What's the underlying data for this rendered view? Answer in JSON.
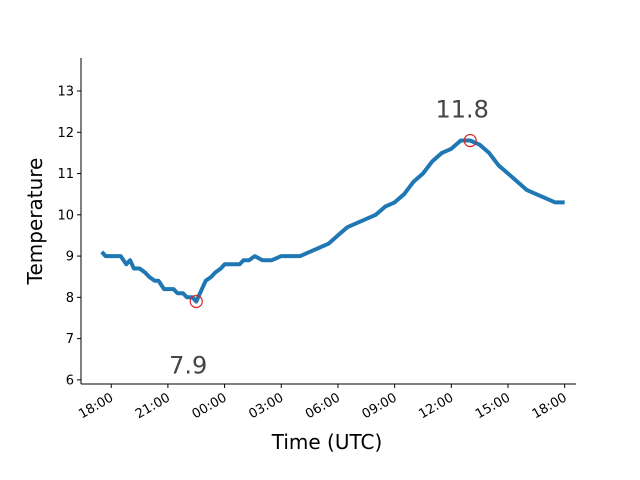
{
  "chart_data": {
    "type": "line",
    "title": "",
    "xlabel": "Time (UTC)",
    "ylabel": "Temperature",
    "x_tick_labels": [
      "18:00",
      "21:00",
      "00:00",
      "03:00",
      "06:00",
      "09:00",
      "12:00",
      "15:00",
      "18:00"
    ],
    "x_tick_hours": [
      0,
      3,
      6,
      9,
      12,
      15,
      18,
      21,
      24
    ],
    "y_ticks": [
      6,
      7,
      8,
      9,
      10,
      11,
      12,
      13
    ],
    "xlim_hours": [
      -1.6,
      24.6
    ],
    "ylim": [
      5.9,
      13.8
    ],
    "grid": false,
    "line_color": "#1f77b4",
    "marker_color": "#d62728",
    "series": [
      {
        "x_hours": [
          -0.5,
          -0.3,
          0,
          0.3,
          0.5,
          0.8,
          1.0,
          1.2,
          1.5,
          1.8,
          2.0,
          2.3,
          2.5,
          2.8,
          3.0,
          3.3,
          3.5,
          3.8,
          4.0,
          4.3,
          4.5,
          4.8,
          5.0,
          5.3,
          5.5,
          5.8,
          6.0,
          6.3,
          6.5,
          6.8,
          7.0,
          7.3,
          7.6,
          8.0,
          8.5,
          9.0,
          9.5,
          10.0,
          10.5,
          11.0,
          11.5,
          12.0,
          12.5,
          13.0,
          13.5,
          14.0,
          14.5,
          15.0,
          15.5,
          16.0,
          16.5,
          17.0,
          17.5,
          18.0,
          18.5,
          19.0,
          19.5,
          20.0,
          20.5,
          21.0,
          21.5,
          22.0,
          22.5,
          23.0,
          23.5,
          24.0
        ],
        "y_values": [
          9.1,
          9.0,
          9.0,
          9.0,
          9.0,
          8.8,
          8.9,
          8.7,
          8.7,
          8.6,
          8.5,
          8.4,
          8.4,
          8.2,
          8.2,
          8.2,
          8.1,
          8.1,
          8.0,
          8.0,
          7.9,
          8.2,
          8.4,
          8.5,
          8.6,
          8.7,
          8.8,
          8.8,
          8.8,
          8.8,
          8.9,
          8.9,
          9.0,
          8.9,
          8.9,
          9.0,
          9.0,
          9.0,
          9.1,
          9.2,
          9.3,
          9.5,
          9.7,
          9.8,
          9.9,
          10.0,
          10.2,
          10.3,
          10.5,
          10.8,
          11.0,
          11.3,
          11.5,
          11.6,
          11.8,
          11.8,
          11.7,
          11.5,
          11.2,
          11.0,
          10.8,
          10.6,
          10.5,
          10.4,
          10.3,
          10.3
        ]
      }
    ],
    "annotations": [
      {
        "label": "7.9",
        "x_hours": 4.5,
        "y": 7.9,
        "text_y": 6.35
      },
      {
        "label": "11.8",
        "x_hours": 19.0,
        "y": 11.8,
        "text_y": 12.55
      }
    ]
  }
}
